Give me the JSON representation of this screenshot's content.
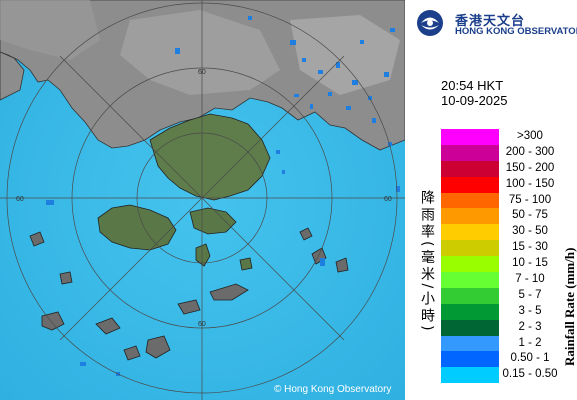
{
  "header": {
    "logo_cn": "香港天文台",
    "logo_en": "HONG KONG OBSERVATORY"
  },
  "timestamp": {
    "time": "20:54 HKT",
    "date": "10-09-2025"
  },
  "legend": {
    "title_cn": "降雨率(毫米/小時)",
    "title_en": "Rainfall Rate (mm/h)",
    "items": [
      {
        "label": ">300",
        "color": "#ff00ff"
      },
      {
        "label": "200 - 300",
        "color": "#cc0099"
      },
      {
        "label": "150 - 200",
        "color": "#cc0033"
      },
      {
        "label": "100 - 150",
        "color": "#ff0000"
      },
      {
        "label": "75 - 100",
        "color": "#ff6600"
      },
      {
        "label": "50 - 75",
        "color": "#ff9900"
      },
      {
        "label": "30 - 50",
        "color": "#ffcc00"
      },
      {
        "label": "15 - 30",
        "color": "#cccc00"
      },
      {
        "label": "10 - 15",
        "color": "#99ff00"
      },
      {
        "label": "7 - 10",
        "color": "#66ff33"
      },
      {
        "label": "5 - 7",
        "color": "#33cc33"
      },
      {
        "label": "3 - 5",
        "color": "#009933"
      },
      {
        "label": "2 - 3",
        "color": "#006633"
      },
      {
        "label": "1 - 2",
        "color": "#3399ff"
      },
      {
        "label": "0.50 - 1",
        "color": "#0066ff"
      },
      {
        "label": "0.15 - 0.50",
        "color": "#00ccff"
      }
    ]
  },
  "map": {
    "range_labels": [
      "60",
      "60",
      "60",
      "60"
    ],
    "copyright": "© Hong Kong Observatory",
    "sea_color": "#39b8e8",
    "land_color": "#8c8c8c",
    "island_color": "#5c7a4a"
  }
}
